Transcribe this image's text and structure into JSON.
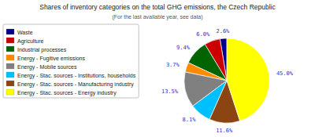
{
  "chart_data": {
    "type": "pie",
    "title": "Shares of inventory categories on the total GHG emissions, the Czech Republic",
    "subtitle": "(For the last available year, see data)",
    "categories": [
      "Waste",
      "Agriculture",
      "Industrial processes",
      "Energy - Fugitive emissions",
      "Energy - Mobile sources",
      "Energy - Stac. sources - Institutions, households",
      "Energy - Stac. sources - Manufacturing industry",
      "Energy - Stac. sources - Energy industry"
    ],
    "values": [
      2.6,
      6.0,
      9.4,
      3.7,
      13.5,
      8.1,
      11.6,
      45.0
    ],
    "value_labels": [
      "2.6%",
      "6.0%",
      "9.4%",
      "3.7%",
      "13.5%",
      "8.1%",
      "11.6%",
      "45.0%"
    ],
    "colors": [
      "#00008B",
      "#CC0000",
      "#006400",
      "#FF8C00",
      "#808080",
      "#00BFFF",
      "#8B4513",
      "#FFFF00"
    ],
    "data_labels": true,
    "legend": "upper left"
  }
}
